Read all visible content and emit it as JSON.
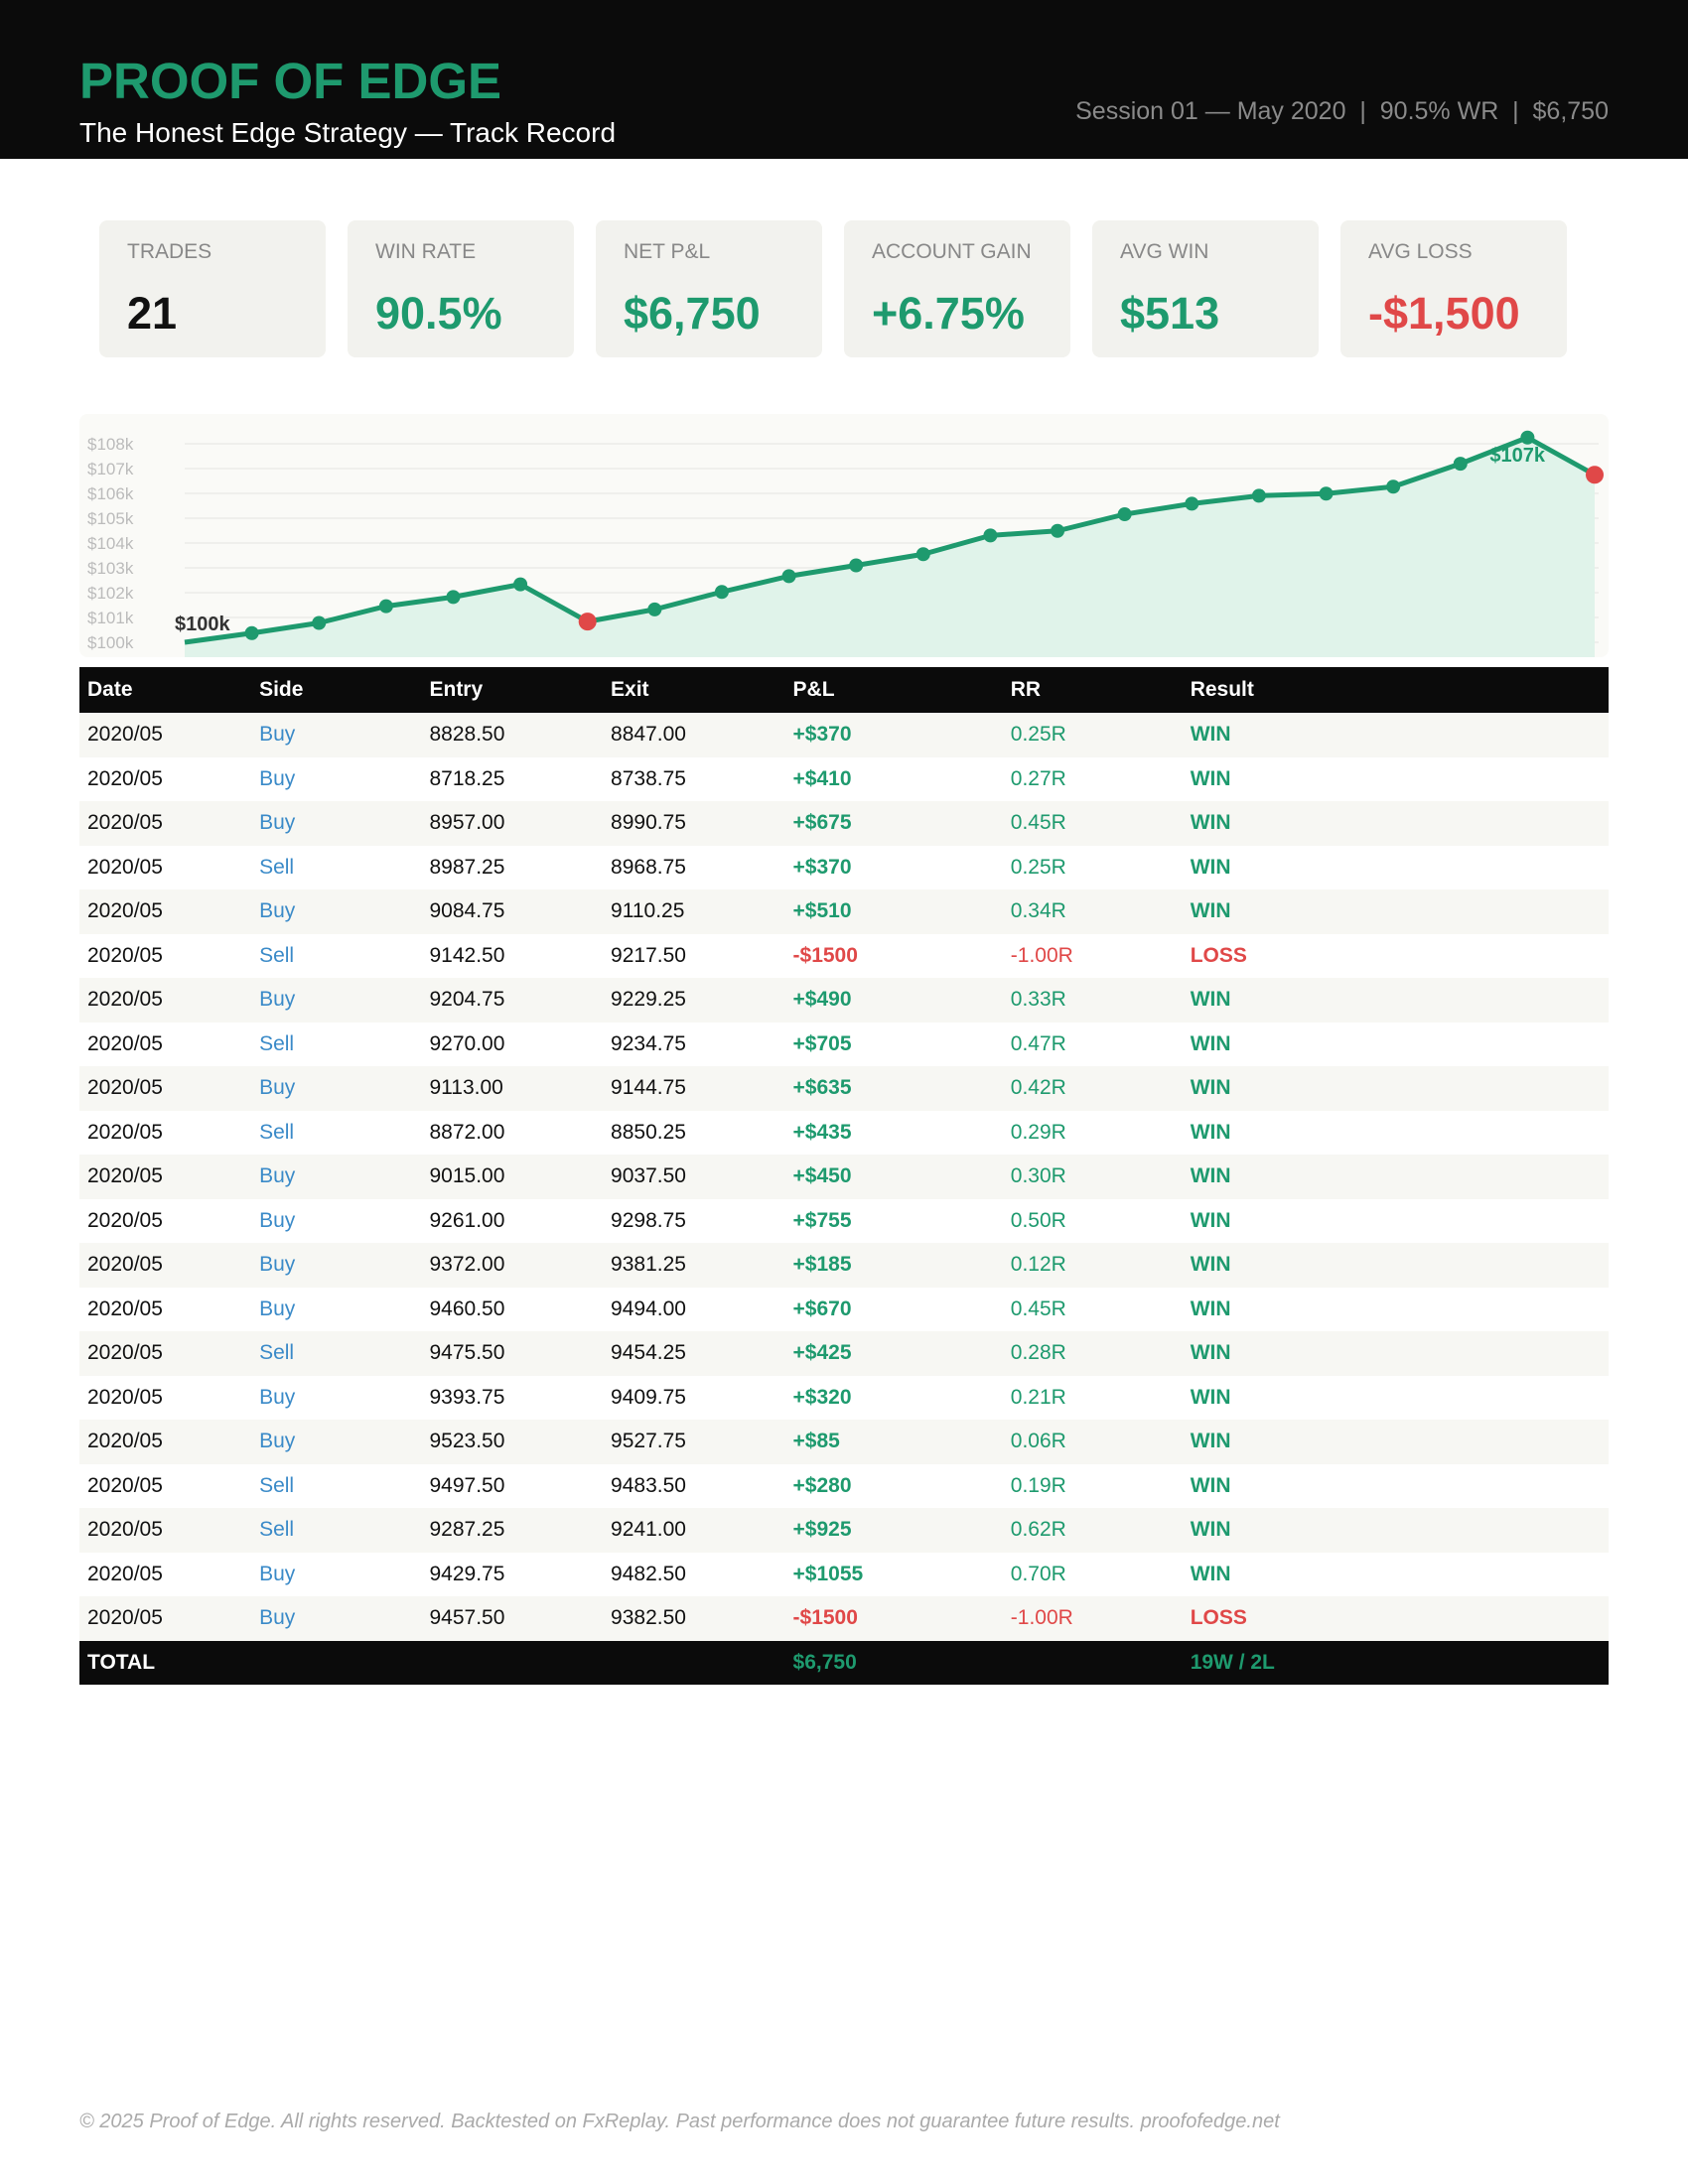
{
  "header": {
    "title": "PROOF OF EDGE",
    "subtitle": "The Honest Edge Strategy — Track Record",
    "meta": "Session 01 — May 2020  |  90.5% WR  |  $6,750"
  },
  "stats": [
    {
      "label": "TRADES",
      "value": "21"
    },
    {
      "label": "WIN RATE",
      "value": "90.5%"
    },
    {
      "label": "NET P&L",
      "value": "$6,750"
    },
    {
      "label": "ACCOUNT GAIN",
      "value": "+6.75%"
    },
    {
      "label": "AVG WIN",
      "value": "$513"
    },
    {
      "label": "AVG LOSS",
      "value": "-$1,500"
    }
  ],
  "chart_data": {
    "type": "line",
    "values": [
      100000,
      100370,
      100780,
      101455,
      101825,
      102335,
      100835,
      101325,
      102030,
      102665,
      103100,
      103550,
      104305,
      104490,
      105160,
      105585,
      105905,
      105990,
      106270,
      107195,
      108250,
      106750
    ],
    "ylim": [
      99400,
      109200
    ],
    "yticks": [
      {
        "value": 100000,
        "label": "$100k"
      },
      {
        "value": 101000,
        "label": "$101k"
      },
      {
        "value": 102000,
        "label": "$102k"
      },
      {
        "value": 103000,
        "label": "$103k"
      },
      {
        "value": 104000,
        "label": "$104k"
      },
      {
        "value": 105000,
        "label": "$105k"
      },
      {
        "value": 106000,
        "label": "$106k"
      },
      {
        "value": 107000,
        "label": "$107k"
      },
      {
        "value": 108000,
        "label": "$108k"
      }
    ],
    "annotations": [
      "$100k",
      "$107k"
    ],
    "grid": true,
    "color": "#1e9a6e",
    "loss_color": "#e04848"
  },
  "table": {
    "columns": [
      "Date",
      "Side",
      "Entry",
      "Exit",
      "P&L",
      "RR",
      "Result"
    ],
    "rows": [
      [
        "2020/05",
        "Buy",
        "8828.50",
        "8847.00",
        "+$370",
        "0.25R",
        "WIN"
      ],
      [
        "2020/05",
        "Buy",
        "8718.25",
        "8738.75",
        "+$410",
        "0.27R",
        "WIN"
      ],
      [
        "2020/05",
        "Buy",
        "8957.00",
        "8990.75",
        "+$675",
        "0.45R",
        "WIN"
      ],
      [
        "2020/05",
        "Sell",
        "8987.25",
        "8968.75",
        "+$370",
        "0.25R",
        "WIN"
      ],
      [
        "2020/05",
        "Buy",
        "9084.75",
        "9110.25",
        "+$510",
        "0.34R",
        "WIN"
      ],
      [
        "2020/05",
        "Sell",
        "9142.50",
        "9217.50",
        "-$1500",
        "-1.00R",
        "LOSS"
      ],
      [
        "2020/05",
        "Buy",
        "9204.75",
        "9229.25",
        "+$490",
        "0.33R",
        "WIN"
      ],
      [
        "2020/05",
        "Sell",
        "9270.00",
        "9234.75",
        "+$705",
        "0.47R",
        "WIN"
      ],
      [
        "2020/05",
        "Buy",
        "9113.00",
        "9144.75",
        "+$635",
        "0.42R",
        "WIN"
      ],
      [
        "2020/05",
        "Sell",
        "8872.00",
        "8850.25",
        "+$435",
        "0.29R",
        "WIN"
      ],
      [
        "2020/05",
        "Buy",
        "9015.00",
        "9037.50",
        "+$450",
        "0.30R",
        "WIN"
      ],
      [
        "2020/05",
        "Buy",
        "9261.00",
        "9298.75",
        "+$755",
        "0.50R",
        "WIN"
      ],
      [
        "2020/05",
        "Buy",
        "9372.00",
        "9381.25",
        "+$185",
        "0.12R",
        "WIN"
      ],
      [
        "2020/05",
        "Buy",
        "9460.50",
        "9494.00",
        "+$670",
        "0.45R",
        "WIN"
      ],
      [
        "2020/05",
        "Sell",
        "9475.50",
        "9454.25",
        "+$425",
        "0.28R",
        "WIN"
      ],
      [
        "2020/05",
        "Buy",
        "9393.75",
        "9409.75",
        "+$320",
        "0.21R",
        "WIN"
      ],
      [
        "2020/05",
        "Buy",
        "9523.50",
        "9527.75",
        "+$85",
        "0.06R",
        "WIN"
      ],
      [
        "2020/05",
        "Sell",
        "9497.50",
        "9483.50",
        "+$280",
        "0.19R",
        "WIN"
      ],
      [
        "2020/05",
        "Sell",
        "9287.25",
        "9241.00",
        "+$925",
        "0.62R",
        "WIN"
      ],
      [
        "2020/05",
        "Buy",
        "9429.75",
        "9482.50",
        "+$1055",
        "0.70R",
        "WIN"
      ],
      [
        "2020/05",
        "Buy",
        "9457.50",
        "9382.50",
        "-$1500",
        "-1.00R",
        "LOSS"
      ]
    ],
    "total": {
      "label": "TOTAL",
      "pnl": "$6,750",
      "result": "19W / 2L"
    }
  },
  "footer": "© 2025 Proof of Edge. All rights reserved. Backtested on FxReplay. Past performance does not guarantee future results. proofofedge.net"
}
